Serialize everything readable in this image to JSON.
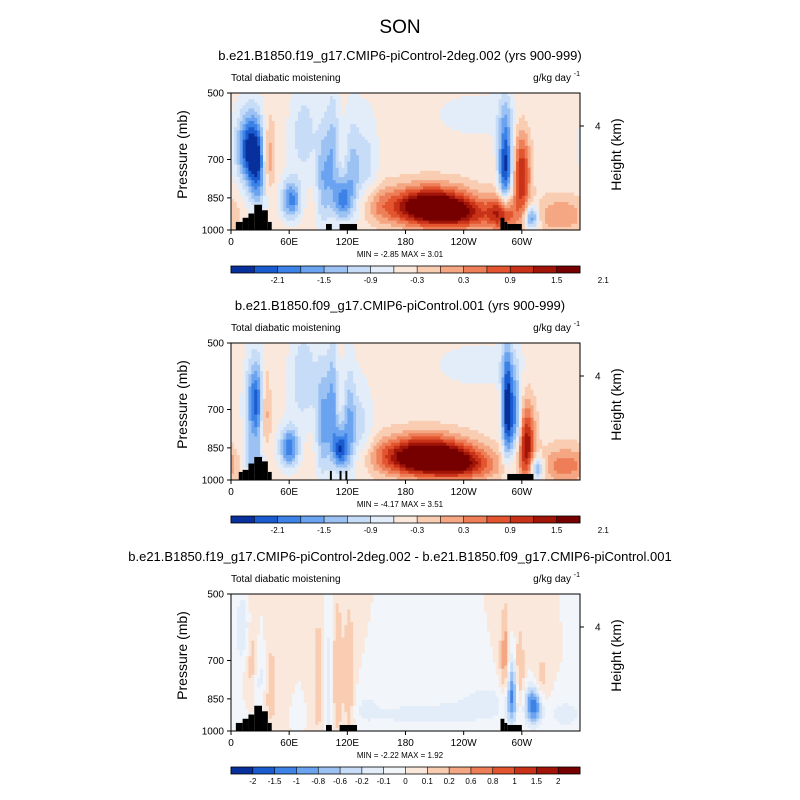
{
  "figure": {
    "season": "SON",
    "colors": {
      "land": "#000000",
      "text": "#000000",
      "frame": "#000000"
    }
  },
  "chart_data": [
    {
      "type": "heatmap",
      "title": "b.e21.B1850.f19_g17.CMIP6-piControl-2deg.002 (yrs 900-999)",
      "left_label": "Total diabatic moistening",
      "units": "g/kg day",
      "units_superscript": "-1",
      "ylabel": "Pressure (mb)",
      "ylabel_right": "Height (km)",
      "yticks": [
        "500",
        "700",
        "850",
        "1000"
      ],
      "ytick_values": [
        500,
        700,
        850,
        1000
      ],
      "right_tick": "4",
      "xticks": [
        "0",
        "60E",
        "120E",
        "180",
        "120W",
        "60W"
      ],
      "xtick_values": [
        0,
        60,
        120,
        180,
        240,
        300
      ],
      "xlim": [
        0,
        360
      ],
      "ylim": [
        1000,
        500
      ],
      "stats": "MIN =  -2.85  MAX =   3.01",
      "colorbar": {
        "labels": [
          "-2.1",
          "-1.5",
          "-0.9",
          "-0.3",
          "0.3",
          "0.9",
          "1.5",
          "2.1"
        ],
        "colors": [
          "#08309c",
          "#1a5bd0",
          "#3d82e6",
          "#6aa3ef",
          "#9cc2f4",
          "#c7dcf7",
          "#e3edf9",
          "#fbe8dc",
          "#f9cdb2",
          "#f5a683",
          "#ee7e58",
          "#e2552f",
          "#c83219",
          "#a11408",
          "#760000"
        ]
      },
      "features": [
        {
          "lon": 20,
          "p": 660,
          "v": -2.1,
          "slon": 10,
          "sp": 80
        },
        {
          "lon": 28,
          "p": 760,
          "v": -1.4,
          "slon": 8,
          "sp": 100
        },
        {
          "lon": 38,
          "p": 700,
          "v": 1.3,
          "slon": 5,
          "sp": 90
        },
        {
          "lon": 62,
          "p": 860,
          "v": -1.6,
          "slon": 7,
          "sp": 60
        },
        {
          "lon": 75,
          "p": 620,
          "v": -0.7,
          "slon": 10,
          "sp": 100
        },
        {
          "lon": 95,
          "p": 780,
          "v": -1.0,
          "slon": 5,
          "sp": 140
        },
        {
          "lon": 105,
          "p": 700,
          "v": -1.0,
          "slon": 5,
          "sp": 150
        },
        {
          "lon": 115,
          "p": 860,
          "v": -1.5,
          "slon": 6,
          "sp": 60
        },
        {
          "lon": 125,
          "p": 760,
          "v": -0.9,
          "slon": 6,
          "sp": 140
        },
        {
          "lon": 140,
          "p": 720,
          "v": -0.6,
          "slon": 8,
          "sp": 120
        },
        {
          "lon": 150,
          "p": 880,
          "v": 0.4,
          "slon": 12,
          "sp": 60
        },
        {
          "lon": 205,
          "p": 890,
          "v": 2.9,
          "slon": 30,
          "sp": 60
        },
        {
          "lon": 240,
          "p": 930,
          "v": 1.1,
          "slon": 25,
          "sp": 50
        },
        {
          "lon": 280,
          "p": 920,
          "v": 1.6,
          "slon": 10,
          "sp": 60
        },
        {
          "lon": 283,
          "p": 720,
          "v": -2.2,
          "slon": 5,
          "sp": 120
        },
        {
          "lon": 300,
          "p": 760,
          "v": 1.8,
          "slon": 6,
          "sp": 110
        },
        {
          "lon": 310,
          "p": 940,
          "v": -1.5,
          "slon": 5,
          "sp": 40
        },
        {
          "lon": 340,
          "p": 930,
          "v": 0.8,
          "slon": 18,
          "sp": 60
        },
        {
          "lon": 260,
          "p": 560,
          "v": -0.3,
          "slon": 40,
          "sp": 50
        }
      ],
      "land": [
        {
          "lon0": 5,
          "lon1": 12,
          "p_top": 960
        },
        {
          "lon0": 12,
          "lon1": 18,
          "p_top": 940
        },
        {
          "lon0": 18,
          "lon1": 24,
          "p_top": 920
        },
        {
          "lon0": 24,
          "lon1": 32,
          "p_top": 880
        },
        {
          "lon0": 32,
          "lon1": 38,
          "p_top": 905
        },
        {
          "lon0": 38,
          "lon1": 42,
          "p_top": 960
        },
        {
          "lon0": 98,
          "lon1": 104,
          "p_top": 970
        },
        {
          "lon0": 112,
          "lon1": 130,
          "p_top": 970
        },
        {
          "lon0": 278,
          "lon1": 282,
          "p_top": 940
        },
        {
          "lon0": 282,
          "lon1": 285,
          "p_top": 960
        },
        {
          "lon0": 285,
          "lon1": 300,
          "p_top": 970
        }
      ]
    },
    {
      "type": "heatmap",
      "title": "b.e21.B1850.f09_g17.CMIP6-piControl.001 (yrs 900-999)",
      "left_label": "Total diabatic moistening",
      "units": "g/kg day",
      "units_superscript": "-1",
      "ylabel": "Pressure (mb)",
      "ylabel_right": "Height (km)",
      "yticks": [
        "500",
        "700",
        "850",
        "1000"
      ],
      "ytick_values": [
        500,
        700,
        850,
        1000
      ],
      "right_tick": "4",
      "xticks": [
        "0",
        "60E",
        "120E",
        "180",
        "120W",
        "60W"
      ],
      "xtick_values": [
        0,
        60,
        120,
        180,
        240,
        300
      ],
      "xlim": [
        0,
        360
      ],
      "ylim": [
        1000,
        500
      ],
      "stats": "MIN =  -4.17  MAX =   3.51",
      "colorbar": {
        "labels": [
          "-2.1",
          "-1.5",
          "-0.9",
          "-0.3",
          "0.3",
          "0.9",
          "1.5",
          "2.1"
        ],
        "colors": [
          "#08309c",
          "#1a5bd0",
          "#3d82e6",
          "#6aa3ef",
          "#9cc2f4",
          "#c7dcf7",
          "#e3edf9",
          "#fbe8dc",
          "#f9cdb2",
          "#f5a683",
          "#ee7e58",
          "#e2552f",
          "#c83219",
          "#a11408",
          "#760000"
        ]
      },
      "features": [
        {
          "lon": 26,
          "p": 680,
          "v": -2.0,
          "slon": 7,
          "sp": 100
        },
        {
          "lon": 35,
          "p": 700,
          "v": 1.2,
          "slon": 4,
          "sp": 100
        },
        {
          "lon": 22,
          "p": 900,
          "v": -1.0,
          "slon": 8,
          "sp": 60
        },
        {
          "lon": 60,
          "p": 850,
          "v": -1.7,
          "slon": 7,
          "sp": 60
        },
        {
          "lon": 75,
          "p": 600,
          "v": -0.8,
          "slon": 10,
          "sp": 100
        },
        {
          "lon": 95,
          "p": 760,
          "v": -1.2,
          "slon": 5,
          "sp": 150
        },
        {
          "lon": 105,
          "p": 700,
          "v": -1.2,
          "slon": 4,
          "sp": 150
        },
        {
          "lon": 113,
          "p": 860,
          "v": -1.9,
          "slon": 5,
          "sp": 60
        },
        {
          "lon": 122,
          "p": 760,
          "v": -1.1,
          "slon": 5,
          "sp": 140
        },
        {
          "lon": 135,
          "p": 780,
          "v": -0.6,
          "slon": 8,
          "sp": 120
        },
        {
          "lon": 200,
          "p": 890,
          "v": 3.1,
          "slon": 32,
          "sp": 60
        },
        {
          "lon": 240,
          "p": 930,
          "v": 1.3,
          "slon": 25,
          "sp": 50
        },
        {
          "lon": 285,
          "p": 700,
          "v": -2.4,
          "slon": 4,
          "sp": 130
        },
        {
          "lon": 294,
          "p": 720,
          "v": -1.4,
          "slon": 4,
          "sp": 100
        },
        {
          "lon": 305,
          "p": 840,
          "v": 2.0,
          "slon": 6,
          "sp": 110
        },
        {
          "lon": 315,
          "p": 940,
          "v": -1.5,
          "slon": 5,
          "sp": 40
        },
        {
          "lon": 345,
          "p": 930,
          "v": 1.0,
          "slon": 18,
          "sp": 60
        },
        {
          "lon": 260,
          "p": 560,
          "v": -0.3,
          "slon": 40,
          "sp": 50
        }
      ],
      "land": [
        {
          "lon0": 8,
          "lon1": 12,
          "p_top": 960
        },
        {
          "lon0": 12,
          "lon1": 18,
          "p_top": 950
        },
        {
          "lon0": 18,
          "lon1": 24,
          "p_top": 920
        },
        {
          "lon0": 24,
          "lon1": 32,
          "p_top": 890
        },
        {
          "lon0": 32,
          "lon1": 38,
          "p_top": 910
        },
        {
          "lon0": 38,
          "lon1": 42,
          "p_top": 960
        },
        {
          "lon0": 102,
          "lon1": 104,
          "p_top": 955
        },
        {
          "lon0": 112,
          "lon1": 114,
          "p_top": 955
        },
        {
          "lon0": 118,
          "lon1": 120,
          "p_top": 955
        },
        {
          "lon0": 285,
          "lon1": 312,
          "p_top": 970
        }
      ]
    },
    {
      "type": "heatmap",
      "title": "b.e21.B1850.f19_g17.CMIP6-piControl-2deg.002 - b.e21.B1850.f09_g17.CMIP6-piControl.001",
      "left_label": "Total diabatic moistening",
      "units": "g/kg day",
      "units_superscript": "-1",
      "ylabel": "Pressure (mb)",
      "ylabel_right": "Height (km)",
      "yticks": [
        "500",
        "700",
        "850",
        "1000"
      ],
      "ytick_values": [
        500,
        700,
        850,
        1000
      ],
      "right_tick": "4",
      "xticks": [
        "0",
        "60E",
        "120E",
        "180",
        "120W",
        "60W"
      ],
      "xtick_values": [
        0,
        60,
        120,
        180,
        240,
        300
      ],
      "xlim": [
        0,
        360
      ],
      "ylim": [
        1000,
        500
      ],
      "stats": "MIN =  -2.22  MAX =   1.92",
      "colorbar": {
        "labels": [
          "-2",
          "-1.5",
          "-1",
          "-0.8",
          "-0.6",
          "-0.2",
          "-0.1",
          "0",
          "0.1",
          "0.2",
          "0.6",
          "0.8",
          "1",
          "1.5",
          "2"
        ],
        "colors": [
          "#08309c",
          "#1a5bd0",
          "#3d82e6",
          "#6aa3ef",
          "#9cc2f4",
          "#c7dcf7",
          "#e3edf9",
          "#f2f6fb",
          "#fbe8dc",
          "#f9cdb2",
          "#f5a683",
          "#ee7e58",
          "#e2552f",
          "#c83219",
          "#a11408",
          "#760000"
        ]
      },
      "features": [
        {
          "lon": 15,
          "p": 600,
          "v": -0.7,
          "slon": 8,
          "sp": 80
        },
        {
          "lon": 22,
          "p": 650,
          "v": 0.8,
          "slon": 5,
          "sp": 120
        },
        {
          "lon": 30,
          "p": 760,
          "v": -0.6,
          "slon": 5,
          "sp": 100
        },
        {
          "lon": 40,
          "p": 800,
          "v": 0.5,
          "slon": 6,
          "sp": 150
        },
        {
          "lon": 90,
          "p": 780,
          "v": 0.5,
          "slon": 4,
          "sp": 200
        },
        {
          "lon": 100,
          "p": 800,
          "v": -0.5,
          "slon": 3,
          "sp": 200
        },
        {
          "lon": 110,
          "p": 760,
          "v": 0.6,
          "slon": 4,
          "sp": 200
        },
        {
          "lon": 122,
          "p": 780,
          "v": 0.6,
          "slon": 4,
          "sp": 200
        },
        {
          "lon": 140,
          "p": 880,
          "v": -0.3,
          "slon": 10,
          "sp": 60
        },
        {
          "lon": 200,
          "p": 920,
          "v": -0.5,
          "slon": 40,
          "sp": 40
        },
        {
          "lon": 265,
          "p": 860,
          "v": -0.4,
          "slon": 25,
          "sp": 60
        },
        {
          "lon": 283,
          "p": 700,
          "v": 0.9,
          "slon": 4,
          "sp": 120
        },
        {
          "lon": 290,
          "p": 820,
          "v": -1.6,
          "slon": 4,
          "sp": 110
        },
        {
          "lon": 297,
          "p": 760,
          "v": 0.8,
          "slon": 4,
          "sp": 120
        },
        {
          "lon": 312,
          "p": 880,
          "v": -1.8,
          "slon": 6,
          "sp": 60
        },
        {
          "lon": 320,
          "p": 780,
          "v": 0.5,
          "slon": 6,
          "sp": 80
        },
        {
          "lon": 345,
          "p": 920,
          "v": -0.4,
          "slon": 15,
          "sp": 60
        }
      ],
      "land": [
        {
          "lon0": 5,
          "lon1": 12,
          "p_top": 960
        },
        {
          "lon0": 12,
          "lon1": 18,
          "p_top": 940
        },
        {
          "lon0": 18,
          "lon1": 24,
          "p_top": 920
        },
        {
          "lon0": 24,
          "lon1": 32,
          "p_top": 880
        },
        {
          "lon0": 32,
          "lon1": 38,
          "p_top": 905
        },
        {
          "lon0": 38,
          "lon1": 42,
          "p_top": 960
        },
        {
          "lon0": 98,
          "lon1": 104,
          "p_top": 970
        },
        {
          "lon0": 112,
          "lon1": 130,
          "p_top": 970
        },
        {
          "lon0": 278,
          "lon1": 282,
          "p_top": 940
        },
        {
          "lon0": 282,
          "lon1": 285,
          "p_top": 960
        },
        {
          "lon0": 285,
          "lon1": 300,
          "p_top": 970
        }
      ]
    }
  ]
}
